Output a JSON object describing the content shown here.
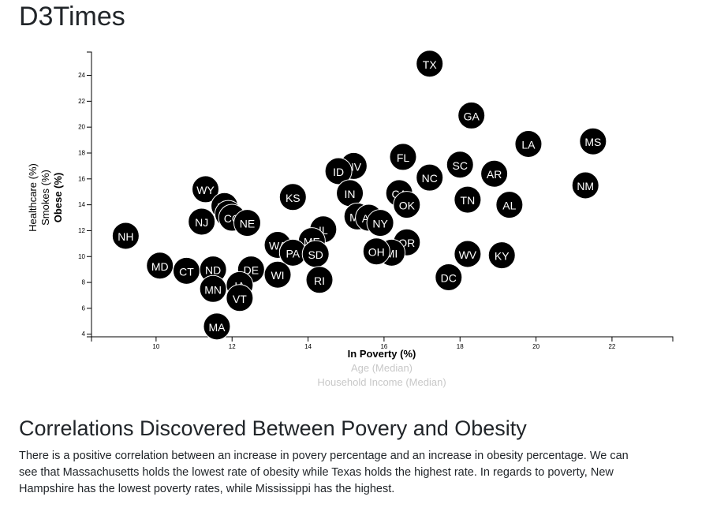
{
  "site_title": "D3Times",
  "section_heading": "Correlations Discovered Between Povery and Obesity",
  "analysis_text": "There is a positive correlation between an increase in povery percentage and an increase in obesity percentage. We can see that Massachusetts holds the lowest rate of obesity while Texas holds the highest rate. In regards to poverty, New Hampshire has the lowest poverty rates, while Mississippi has the highest.",
  "colors": {
    "circle_fill": "#000000",
    "circle_stroke": "#ffffff",
    "label_text": "#ffffff",
    "inactive_x_label": "#c8c8c8"
  },
  "chart_data": {
    "type": "scatter",
    "xlabel": "In Poverty (%)",
    "ylabel": "Obese (%)",
    "x_axis_options": [
      {
        "label": "In Poverty (%)",
        "active": true
      },
      {
        "label": "Age (Median)",
        "active": false
      },
      {
        "label": "Household Income (Median)",
        "active": false
      }
    ],
    "y_axis_options": [
      {
        "label": "Obese (%)",
        "active": true
      },
      {
        "label": "Smokes (%)",
        "active": false
      },
      {
        "label": "Healthcare (%)",
        "active": false
      }
    ],
    "xlim": [
      8.3,
      23.6
    ],
    "ylim": [
      3.8,
      25.8
    ],
    "x_ticks": [
      10,
      12,
      14,
      16,
      18,
      20,
      22
    ],
    "y_ticks": [
      4,
      6,
      8,
      10,
      12,
      14,
      16,
      18,
      20,
      22,
      24
    ],
    "grid": false,
    "points": [
      {
        "abbr": "TX",
        "x": 17.2,
        "y": 24.9
      },
      {
        "abbr": "GA",
        "x": 18.3,
        "y": 20.9
      },
      {
        "abbr": "LA",
        "x": 19.8,
        "y": 18.7
      },
      {
        "abbr": "MS",
        "x": 21.5,
        "y": 18.9
      },
      {
        "abbr": "FL",
        "x": 16.5,
        "y": 17.7
      },
      {
        "abbr": "SC",
        "x": 18.0,
        "y": 17.1
      },
      {
        "abbr": "AR",
        "x": 18.9,
        "y": 16.4
      },
      {
        "abbr": "NC",
        "x": 17.2,
        "y": 16.1
      },
      {
        "abbr": "NV",
        "x": 15.2,
        "y": 17.0
      },
      {
        "abbr": "ID",
        "x": 14.8,
        "y": 16.6
      },
      {
        "abbr": "NM",
        "x": 21.3,
        "y": 15.5
      },
      {
        "abbr": "WY",
        "x": 11.3,
        "y": 15.2
      },
      {
        "abbr": "CA",
        "x": 16.4,
        "y": 14.9
      },
      {
        "abbr": "IN",
        "x": 15.1,
        "y": 14.9
      },
      {
        "abbr": "KS",
        "x": 13.6,
        "y": 14.6
      },
      {
        "abbr": "TN",
        "x": 18.2,
        "y": 14.4
      },
      {
        "abbr": "UT",
        "x": 11.8,
        "y": 13.9
      },
      {
        "abbr": "OK",
        "x": 16.6,
        "y": 14.0
      },
      {
        "abbr": "AL",
        "x": 19.3,
        "y": 14.0
      },
      {
        "abbr": "VA",
        "x": 11.9,
        "y": 13.3
      },
      {
        "abbr": "CO",
        "x": 12.0,
        "y": 13.0
      },
      {
        "abbr": "MT",
        "x": 15.3,
        "y": 13.1
      },
      {
        "abbr": "NJ",
        "x": 11.2,
        "y": 12.7
      },
      {
        "abbr": "NE",
        "x": 12.4,
        "y": 12.6
      },
      {
        "abbr": "AZ",
        "x": 15.6,
        "y": 13.0
      },
      {
        "abbr": "NY",
        "x": 15.9,
        "y": 12.6
      },
      {
        "abbr": "IL",
        "x": 14.4,
        "y": 12.1
      },
      {
        "abbr": "NH",
        "x": 9.2,
        "y": 11.6
      },
      {
        "abbr": "ME",
        "x": 14.1,
        "y": 11.2
      },
      {
        "abbr": "WA",
        "x": 13.2,
        "y": 10.9
      },
      {
        "abbr": "OR",
        "x": 16.6,
        "y": 11.1
      },
      {
        "abbr": "PA",
        "x": 13.6,
        "y": 10.3
      },
      {
        "abbr": "SD",
        "x": 14.2,
        "y": 10.2
      },
      {
        "abbr": "MI",
        "x": 16.2,
        "y": 10.3
      },
      {
        "abbr": "OH",
        "x": 15.8,
        "y": 10.4
      },
      {
        "abbr": "WV",
        "x": 18.2,
        "y": 10.2
      },
      {
        "abbr": "KY",
        "x": 19.1,
        "y": 10.1
      },
      {
        "abbr": "MD",
        "x": 10.1,
        "y": 9.3
      },
      {
        "abbr": "CT",
        "x": 10.8,
        "y": 8.9
      },
      {
        "abbr": "ND",
        "x": 11.5,
        "y": 9.0
      },
      {
        "abbr": "DE",
        "x": 12.5,
        "y": 9.0
      },
      {
        "abbr": "DC",
        "x": 17.7,
        "y": 8.4
      },
      {
        "abbr": "WI",
        "x": 13.2,
        "y": 8.6
      },
      {
        "abbr": "IA",
        "x": 12.2,
        "y": 7.8
      },
      {
        "abbr": "RI",
        "x": 14.3,
        "y": 8.2
      },
      {
        "abbr": "MN",
        "x": 11.5,
        "y": 7.5
      },
      {
        "abbr": "VT",
        "x": 12.2,
        "y": 6.8
      },
      {
        "abbr": "MA",
        "x": 11.6,
        "y": 4.6
      }
    ]
  }
}
